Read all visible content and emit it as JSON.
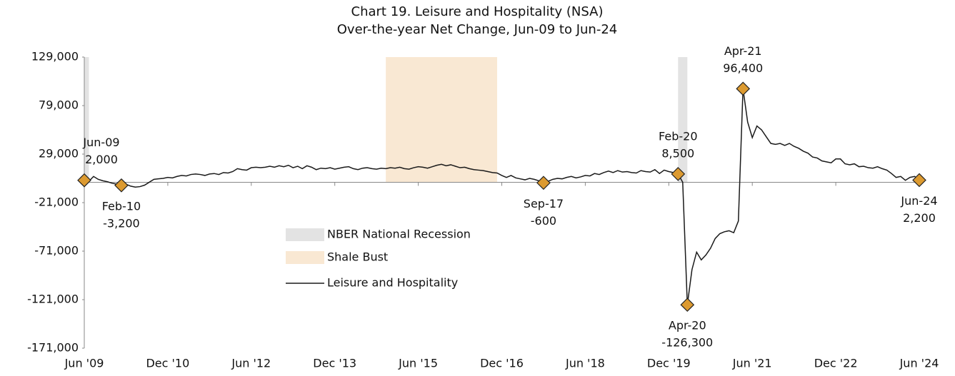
{
  "chart_data": {
    "type": "line",
    "title": "Chart 19. Leisure and Hospitality (NSA)",
    "subtitle": "Over-the-year Net Change, Jun-09 to Jun-24",
    "categories": [
      "Jun '09",
      null,
      null,
      null,
      null,
      null,
      null,
      null,
      null,
      null,
      null,
      null,
      null,
      null,
      null,
      null,
      null,
      null,
      "Dec '10",
      null,
      null,
      null,
      null,
      null,
      null,
      null,
      null,
      null,
      null,
      null,
      null,
      null,
      null,
      null,
      null,
      null,
      "Jun '12",
      null,
      null,
      null,
      null,
      null,
      null,
      null,
      null,
      null,
      null,
      null,
      null,
      null,
      null,
      null,
      null,
      null,
      "Dec '13",
      null,
      null,
      null,
      null,
      null,
      null,
      null,
      null,
      null,
      null,
      null,
      null,
      null,
      null,
      null,
      null,
      null,
      "Jun '15",
      null,
      null,
      null,
      null,
      null,
      null,
      null,
      null,
      null,
      null,
      null,
      null,
      null,
      null,
      null,
      null,
      null,
      "Dec '16",
      null,
      null,
      null,
      null,
      null,
      null,
      null,
      null,
      null,
      null,
      null,
      null,
      null,
      null,
      null,
      null,
      null,
      "Jun '18",
      null,
      null,
      null,
      null,
      null,
      null,
      null,
      null,
      null,
      null,
      null,
      null,
      null,
      null,
      null,
      null,
      null,
      "Dec '19",
      null,
      null,
      null,
      null,
      null,
      null,
      null,
      null,
      null,
      null,
      null,
      null,
      null,
      null,
      null,
      null,
      null,
      "Jun '21",
      null,
      null,
      null,
      null,
      null,
      null,
      null,
      null,
      null,
      null,
      null,
      null,
      null,
      null,
      null,
      null,
      null,
      "Dec '22",
      null,
      null,
      null,
      null,
      null,
      null,
      null,
      null,
      null,
      null,
      null,
      null,
      null,
      null,
      null,
      null,
      null,
      "Jun '24"
    ],
    "series": [
      {
        "name": "Leisure and Hospitality",
        "color": "#1a1a1a",
        "values": [
          2000,
          1000,
          6000,
          3000,
          1500,
          500,
          -1000,
          -2000,
          -3200,
          -2000,
          -4000,
          -5000,
          -4500,
          -3000,
          0,
          3000,
          3500,
          4000,
          5000,
          4500,
          6000,
          7000,
          6500,
          8000,
          8500,
          8000,
          7000,
          8500,
          9000,
          8000,
          10000,
          9500,
          11000,
          14000,
          13000,
          12500,
          15000,
          15500,
          15000,
          15500,
          16500,
          15500,
          17000,
          16000,
          17500,
          15000,
          16500,
          14000,
          17000,
          15500,
          13000,
          14500,
          14000,
          15000,
          13500,
          14500,
          15500,
          16000,
          14000,
          13000,
          14500,
          15000,
          14000,
          13500,
          14500,
          14000,
          15000,
          14500,
          15500,
          14000,
          13500,
          15000,
          16000,
          15500,
          14500,
          16000,
          17500,
          18500,
          17000,
          18000,
          16500,
          15000,
          15500,
          14000,
          13000,
          12500,
          12000,
          11000,
          10000,
          9500,
          7000,
          5000,
          7000,
          4500,
          3500,
          2500,
          4000,
          3000,
          1500,
          -600,
          1000,
          3000,
          4000,
          3500,
          5000,
          6000,
          4500,
          5500,
          7000,
          6500,
          9000,
          8000,
          10000,
          11500,
          10000,
          12000,
          10500,
          11000,
          10000,
          9500,
          12000,
          11000,
          10500,
          13000,
          9000,
          12500,
          11000,
          10000,
          8500,
          0,
          -126300,
          -90000,
          -72000,
          -80000,
          -75000,
          -68000,
          -58000,
          -53000,
          -51000,
          -50000,
          -52000,
          -40000,
          96400,
          62000,
          46000,
          58000,
          54000,
          47000,
          40000,
          39000,
          40000,
          38000,
          40000,
          37000,
          35000,
          32000,
          30000,
          26000,
          25000,
          22000,
          21000,
          20000,
          24000,
          24000,
          19000,
          18000,
          19000,
          16000,
          16500,
          15000,
          14500,
          16000,
          14000,
          12500,
          9000,
          5000,
          6000,
          2000,
          5000,
          6000,
          2200
        ]
      }
    ],
    "regions": [
      {
        "name": "NBER National Recession",
        "color": "#e3e3e3",
        "spans": [
          [
            0,
            1
          ],
          [
            128,
            130
          ]
        ]
      },
      {
        "name": "Shale Bust",
        "color": "#f9e8d3",
        "spans": [
          [
            65,
            89
          ]
        ]
      }
    ],
    "annotations": [
      {
        "date": "Jun-09",
        "value": 2000,
        "value_label": "2,000"
      },
      {
        "date": "Feb-10",
        "value": -3200,
        "value_label": "-3,200"
      },
      {
        "date": "Sep-17",
        "value": -600,
        "value_label": "-600"
      },
      {
        "date": "Feb-20",
        "value": 8500,
        "value_label": "8,500"
      },
      {
        "date": "Apr-20",
        "value": -126300,
        "value_label": "-126,300"
      },
      {
        "date": "Apr-21",
        "value": 96400,
        "value_label": "96,400"
      },
      {
        "date": "Jun-24",
        "value": 2200,
        "value_label": "2,200"
      }
    ],
    "marker_color": "#dc9a30",
    "ylim": [
      -171000,
      129000
    ],
    "yticks": [
      {
        "value": -171000,
        "label": "-171,000"
      },
      {
        "value": -121000,
        "label": "-121,000"
      },
      {
        "value": -71000,
        "label": "-71,000"
      },
      {
        "value": -21000,
        "label": "-21,000"
      },
      {
        "value": 29000,
        "label": "29,000"
      },
      {
        "value": 79000,
        "label": "79,000"
      },
      {
        "value": 129000,
        "label": "129,000"
      }
    ],
    "grid": false
  }
}
